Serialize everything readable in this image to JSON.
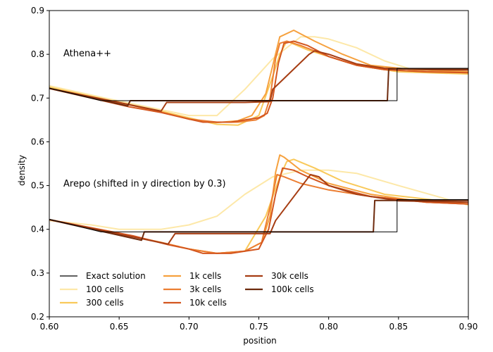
{
  "chart_data": {
    "type": "line",
    "xlabel": "position",
    "ylabel": "density",
    "xlim": [
      0.6,
      0.9
    ],
    "ylim": [
      0.2,
      0.9
    ],
    "xticks": [
      "0.60",
      "0.65",
      "0.70",
      "0.75",
      "0.80",
      "0.85",
      "0.90"
    ],
    "yticks": [
      "0.2",
      "0.3",
      "0.4",
      "0.5",
      "0.6",
      "0.7",
      "0.8",
      "0.9"
    ],
    "annotations": [
      "Athena++",
      "Arepo (shifted in y direction by 0.3)"
    ],
    "legend_position": "lower-left",
    "series": [
      {
        "name": "Exact solution",
        "color": "#000000",
        "groups": [
          {
            "panel": "Athena++",
            "x": [
              0.6,
              0.637,
              0.637,
              0.757,
              0.757,
              0.849,
              0.849,
              0.9
            ],
            "y": [
              0.723,
              0.694,
              0.694,
              0.694,
              0.694,
              0.694,
              0.768,
              0.768
            ]
          },
          {
            "panel": "Arepo",
            "x": [
              0.6,
              0.637,
              0.637,
              0.757,
              0.757,
              0.849,
              0.849,
              0.9
            ],
            "y": [
              0.423,
              0.394,
              0.394,
              0.394,
              0.394,
              0.394,
              0.468,
              0.468
            ]
          }
        ]
      },
      {
        "name": "100 cells",
        "color": "#fde8a8",
        "groups": [
          {
            "panel": "Athena++",
            "x": [
              0.6,
              0.64,
              0.67,
              0.7,
              0.72,
              0.74,
              0.76,
              0.78,
              0.79,
              0.8,
              0.82,
              0.84,
              0.86,
              0.9
            ],
            "y": [
              0.728,
              0.7,
              0.68,
              0.66,
              0.66,
              0.72,
              0.79,
              0.84,
              0.84,
              0.835,
              0.815,
              0.785,
              0.765,
              0.76
            ]
          },
          {
            "panel": "Arepo",
            "x": [
              0.6,
              0.63,
              0.65,
              0.68,
              0.7,
              0.72,
              0.74,
              0.76,
              0.78,
              0.8,
              0.82,
              0.85,
              0.9
            ],
            "y": [
              0.42,
              0.41,
              0.4,
              0.4,
              0.41,
              0.43,
              0.48,
              0.52,
              0.535,
              0.535,
              0.528,
              0.5,
              0.455
            ]
          }
        ]
      },
      {
        "name": "300 cells",
        "color": "#f9c95a",
        "groups": [
          {
            "panel": "Athena++",
            "x": [
              0.6,
              0.65,
              0.68,
              0.7,
              0.72,
              0.735,
              0.75,
              0.76,
              0.765,
              0.77,
              0.785,
              0.8,
              0.82,
              0.85,
              0.9
            ],
            "y": [
              0.725,
              0.69,
              0.67,
              0.655,
              0.64,
              0.638,
              0.66,
              0.75,
              0.8,
              0.83,
              0.81,
              0.795,
              0.775,
              0.76,
              0.755
            ]
          },
          {
            "panel": "Arepo",
            "x": [
              0.6,
              0.65,
              0.68,
              0.7,
              0.72,
              0.74,
              0.755,
              0.765,
              0.77,
              0.775,
              0.79,
              0.81,
              0.84,
              0.9
            ],
            "y": [
              0.422,
              0.39,
              0.37,
              0.355,
              0.345,
              0.35,
              0.43,
              0.52,
              0.555,
              0.56,
              0.54,
              0.51,
              0.48,
              0.458
            ]
          }
        ]
      },
      {
        "name": "1k cells",
        "color": "#f6a13e",
        "groups": [
          {
            "panel": "Athena++",
            "x": [
              0.6,
              0.65,
              0.68,
              0.7,
              0.72,
              0.735,
              0.745,
              0.755,
              0.765,
              0.775,
              0.79,
              0.81,
              0.83,
              0.86,
              0.9
            ],
            "y": [
              0.722,
              0.69,
              0.668,
              0.652,
              0.644,
              0.648,
              0.66,
              0.71,
              0.84,
              0.855,
              0.83,
              0.8,
              0.775,
              0.765,
              0.76
            ]
          },
          {
            "panel": "Arepo",
            "x": [
              0.6,
              0.65,
              0.68,
              0.7,
              0.72,
              0.74,
              0.752,
              0.758,
              0.762,
              0.765,
              0.768,
              0.78,
              0.8,
              0.83,
              0.87,
              0.9
            ],
            "y": [
              0.422,
              0.39,
              0.37,
              0.355,
              0.345,
              0.35,
              0.37,
              0.43,
              0.53,
              0.57,
              0.565,
              0.535,
              0.505,
              0.48,
              0.462,
              0.458
            ]
          }
        ]
      },
      {
        "name": "3k cells",
        "color": "#ec7e32",
        "groups": [
          {
            "panel": "Athena++",
            "x": [
              0.6,
              0.65,
              0.68,
              0.7,
              0.72,
              0.735,
              0.748,
              0.754,
              0.758,
              0.762,
              0.765,
              0.77,
              0.78,
              0.8,
              0.82,
              0.84,
              0.87,
              0.9
            ],
            "y": [
              0.722,
              0.69,
              0.668,
              0.652,
              0.645,
              0.645,
              0.65,
              0.66,
              0.7,
              0.79,
              0.825,
              0.83,
              0.82,
              0.795,
              0.775,
              0.765,
              0.76,
              0.758
            ]
          },
          {
            "panel": "Arepo",
            "x": [
              0.6,
              0.65,
              0.68,
              0.7,
              0.72,
              0.74,
              0.752,
              0.758,
              0.763,
              0.768,
              0.78,
              0.8,
              0.83,
              0.87,
              0.9
            ],
            "y": [
              0.422,
              0.39,
              0.37,
              0.355,
              0.345,
              0.35,
              0.37,
              0.45,
              0.525,
              0.52,
              0.505,
              0.49,
              0.475,
              0.462,
              0.458
            ]
          }
        ]
      },
      {
        "name": "10k cells",
        "color": "#d3561f",
        "groups": [
          {
            "panel": "Athena++",
            "x": [
              0.6,
              0.657,
              0.68,
              0.7,
              0.71,
              0.73,
              0.75,
              0.756,
              0.76,
              0.764,
              0.768,
              0.775,
              0.785,
              0.8,
              0.82,
              0.84,
              0.87,
              0.9
            ],
            "y": [
              0.722,
              0.68,
              0.667,
              0.652,
              0.645,
              0.645,
              0.655,
              0.665,
              0.7,
              0.78,
              0.825,
              0.83,
              0.82,
              0.795,
              0.775,
              0.765,
              0.76,
              0.758
            ]
          },
          {
            "panel": "Arepo",
            "x": [
              0.6,
              0.66,
              0.685,
              0.7,
              0.71,
              0.73,
              0.75,
              0.757,
              0.762,
              0.767,
              0.775,
              0.785,
              0.8,
              0.83,
              0.87,
              0.9
            ],
            "y": [
              0.422,
              0.385,
              0.365,
              0.355,
              0.345,
              0.345,
              0.355,
              0.4,
              0.48,
              0.54,
              0.535,
              0.52,
              0.5,
              0.475,
              0.462,
              0.458
            ]
          }
        ]
      },
      {
        "name": "30k cells",
        "color": "#a63d13",
        "groups": [
          {
            "panel": "Athena++",
            "x": [
              0.6,
              0.68,
              0.684,
              0.69,
              0.71,
              0.74,
              0.758,
              0.76,
              0.786,
              0.79,
              0.8,
              0.82,
              0.84,
              0.87,
              0.9
            ],
            "y": [
              0.722,
              0.67,
              0.69,
              0.69,
              0.69,
              0.69,
              0.692,
              0.72,
              0.8,
              0.808,
              0.8,
              0.778,
              0.768,
              0.765,
              0.764
            ]
          },
          {
            "panel": "Arepo",
            "x": [
              0.6,
              0.685,
              0.69,
              0.72,
              0.75,
              0.758,
              0.762,
              0.787,
              0.793,
              0.8,
              0.82,
              0.85,
              0.9
            ],
            "y": [
              0.422,
              0.366,
              0.39,
              0.39,
              0.39,
              0.39,
              0.42,
              0.525,
              0.52,
              0.5,
              0.48,
              0.465,
              0.462
            ]
          }
        ]
      },
      {
        "name": "100k cells",
        "color": "#6d2a0d",
        "groups": [
          {
            "panel": "Athena++",
            "x": [
              0.6,
              0.656,
              0.658,
              0.75,
              0.758,
              0.758,
              0.842,
              0.843,
              0.9
            ],
            "y": [
              0.722,
              0.682,
              0.694,
              0.694,
              0.694,
              0.694,
              0.694,
              0.767,
              0.767
            ]
          },
          {
            "panel": "Arepo",
            "x": [
              0.6,
              0.666,
              0.668,
              0.75,
              0.758,
              0.758,
              0.832,
              0.833,
              0.9
            ],
            "y": [
              0.422,
              0.375,
              0.394,
              0.394,
              0.394,
              0.394,
              0.394,
              0.466,
              0.466
            ]
          }
        ]
      }
    ]
  }
}
